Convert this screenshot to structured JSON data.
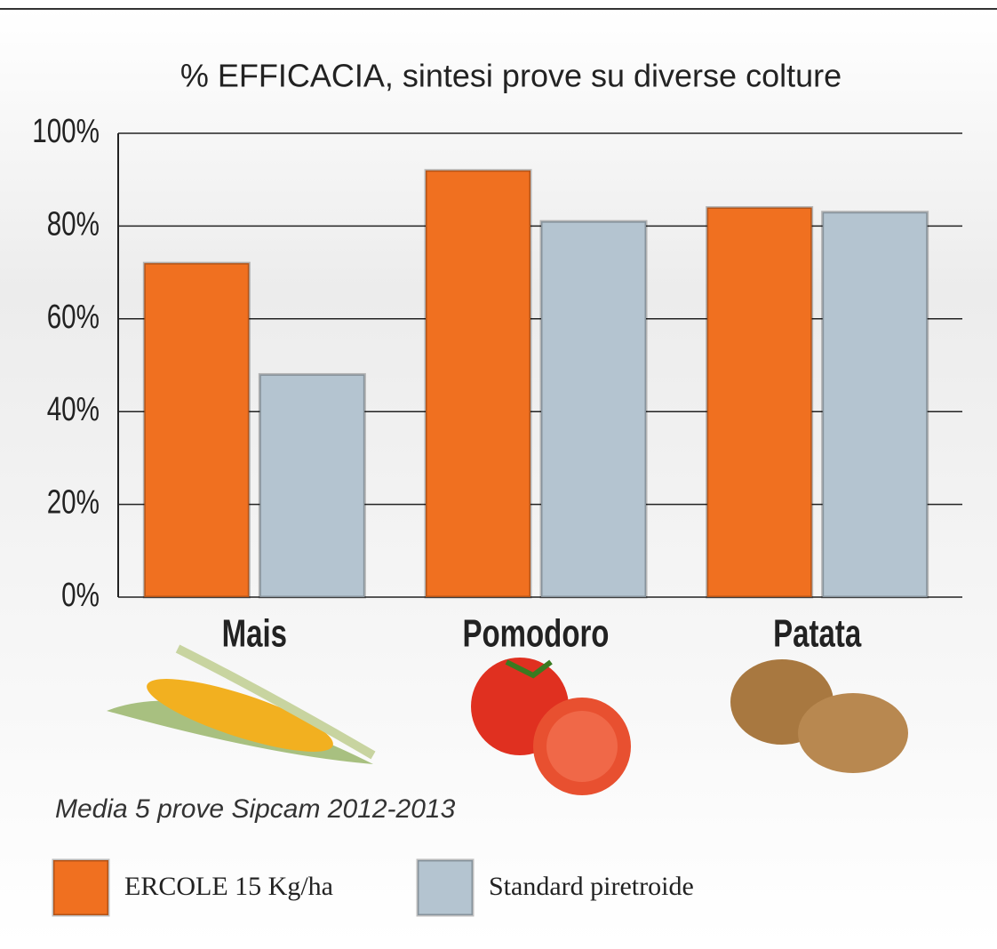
{
  "chart_data": {
    "type": "bar",
    "title": "% EFFICACIA, sintesi prove su diverse colture",
    "categories": [
      "Mais",
      "Pomodoro",
      "Patata"
    ],
    "series": [
      {
        "name": "ERCOLE 15 Kg/ha",
        "color": "#f07020",
        "values": [
          72,
          92,
          84
        ]
      },
      {
        "name": "Standard piretroide",
        "color": "#b4c4d0",
        "values": [
          48,
          81,
          83
        ]
      }
    ],
    "ylim": [
      0,
      100
    ],
    "yticks": [
      {
        "value": 0,
        "label": "0%"
      },
      {
        "value": 20,
        "label": "20%"
      },
      {
        "value": 40,
        "label": "40%"
      },
      {
        "value": 60,
        "label": "60%"
      },
      {
        "value": 80,
        "label": "80%"
      },
      {
        "value": 100,
        "label": "100%"
      }
    ],
    "grid": true,
    "annotation": "Media 5 prove Sipcam 2012-2013"
  }
}
